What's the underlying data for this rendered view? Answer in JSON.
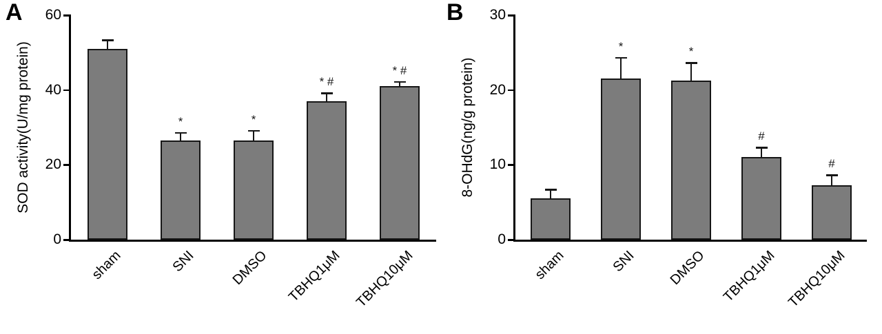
{
  "figure": {
    "background": "#ffffff",
    "bar_fill": "#7c7c7c",
    "bar_border": "#161616",
    "axis_color": "#000000"
  },
  "panels": [
    {
      "letter": "A"
    },
    {
      "letter": "B"
    }
  ],
  "chart_data": [
    {
      "type": "bar",
      "panel": "A",
      "title": "",
      "xlabel": "",
      "ylabel": "SOD activity(U/mg protein)",
      "categories": [
        "sham",
        "SNI",
        "DMSO",
        "TBHQ1μM",
        "TBHQ10μM"
      ],
      "values": [
        51,
        26.5,
        26.5,
        37,
        41
      ],
      "errors": [
        2.5,
        2.3,
        2.8,
        2.3,
        1.4
      ],
      "annotations": [
        "",
        "*",
        "*",
        "* #",
        "* #"
      ],
      "ylim": [
        0,
        60
      ],
      "yticks": [
        0,
        20,
        40,
        60
      ],
      "grid": false,
      "legend": "none"
    },
    {
      "type": "bar",
      "panel": "B",
      "title": "",
      "xlabel": "",
      "ylabel": "8-OHdG(ng/g protein)",
      "categories": [
        "sham",
        "SNI",
        "DMSO",
        "TBHQ1μM",
        "TBHQ10μM"
      ],
      "values": [
        5.5,
        21.5,
        21.3,
        11,
        7.3
      ],
      "errors": [
        1.3,
        2.9,
        2.4,
        1.4,
        1.4
      ],
      "annotations": [
        "",
        "*",
        "*",
        "#",
        "#"
      ],
      "ylim": [
        0,
        30
      ],
      "yticks": [
        0,
        10,
        20,
        30
      ],
      "grid": false,
      "legend": "none"
    }
  ]
}
